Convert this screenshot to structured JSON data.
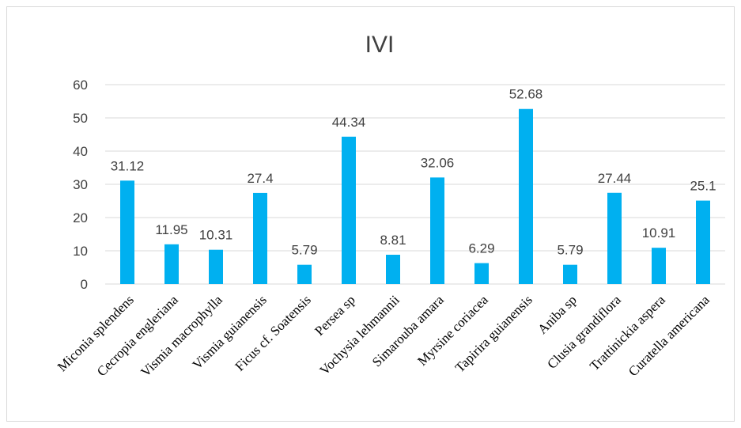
{
  "chart_data": {
    "type": "bar",
    "title": "IVI",
    "xlabel": "",
    "ylabel": "",
    "ylim": [
      0,
      60
    ],
    "yticks": [
      0,
      10,
      20,
      30,
      40,
      50,
      60
    ],
    "grid": true,
    "color": "#00b0f0",
    "categories": [
      "Miconia splendens",
      "Cecropia engleriana",
      "Vismia macrophylla",
      "Vismia guianensis",
      "Ficus cf. Soatensis",
      "Persea sp",
      "Vochysia lehmannii",
      "Simarouba amara",
      "Myrsine coriacea",
      "Tapirira guianensis",
      "Aniba sp",
      "Clusia grandiflora",
      "Trattinickia aspera",
      "Curatella americana"
    ],
    "values": [
      31.12,
      11.95,
      10.31,
      27.4,
      5.79,
      44.34,
      8.81,
      32.06,
      6.29,
      52.68,
      5.79,
      27.44,
      10.91,
      25.1
    ]
  }
}
